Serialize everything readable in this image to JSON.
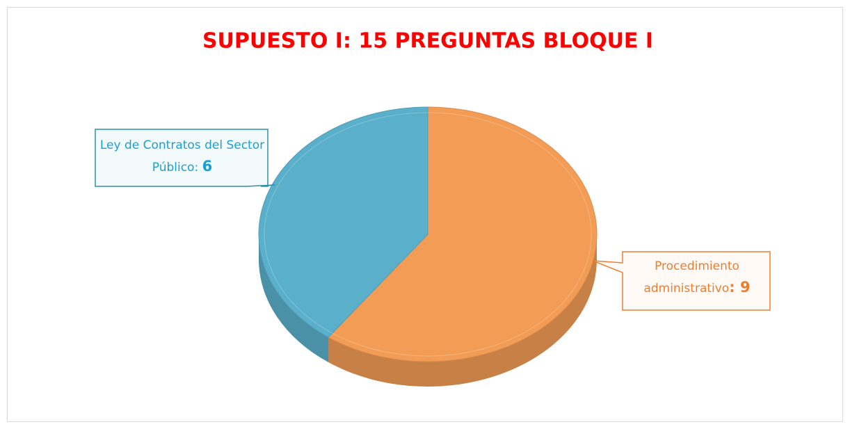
{
  "chart_data": {
    "type": "pie",
    "title": "SUPUESTO I: 15 PREGUNTAS BLOQUE I",
    "categories": [
      "Procedimiento administrativo",
      "Ley de Contratos del Sector Público"
    ],
    "values": [
      9,
      6
    ],
    "colors": [
      "#f39c55",
      "#5aafca"
    ],
    "label_separator": ": "
  }
}
